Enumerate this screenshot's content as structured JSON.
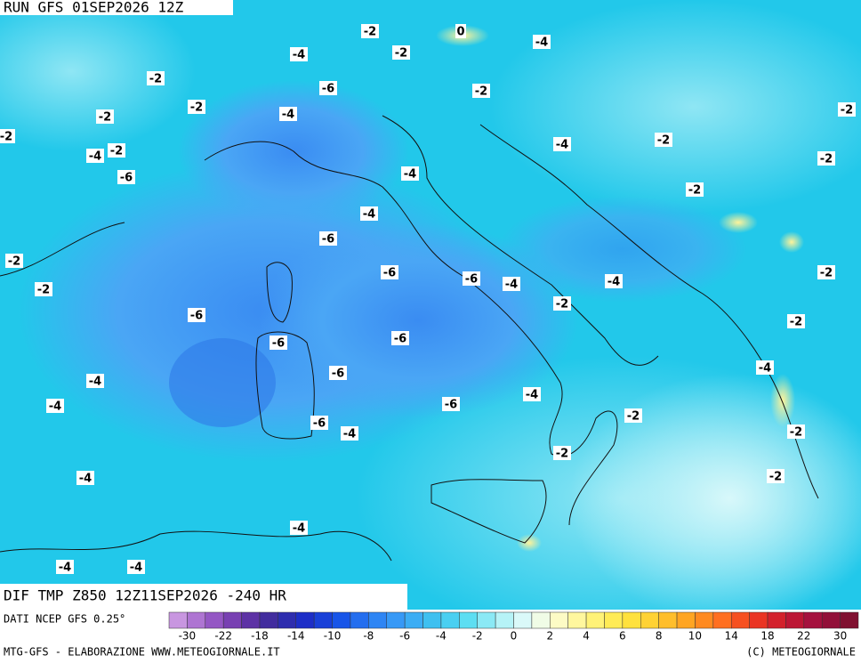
{
  "header": {
    "run": "RUN GFS 01SEP2026 12Z"
  },
  "map": {
    "title": "DIF TMP Z850 12Z11SEP2026 -240 HR",
    "contour_labels": [
      -2,
      0,
      -4,
      -4,
      -2,
      -2,
      -6,
      -2,
      -2,
      -4,
      -2,
      -2,
      -2,
      -2,
      -4,
      -4,
      -2,
      -2,
      -6,
      -4,
      -2,
      -4,
      -6,
      -2,
      -6,
      -6,
      -4,
      -2,
      -4,
      -2,
      -2,
      -6,
      -2,
      -6,
      -6,
      -6,
      -4,
      -4,
      -4,
      -4,
      -6,
      -2,
      -6,
      -4,
      -2,
      -2,
      -2,
      -4,
      -4,
      -4,
      -4
    ]
  },
  "legend": {
    "labels": [
      -30,
      -22,
      -18,
      -14,
      -10,
      -8,
      -6,
      -4,
      -2,
      0,
      2,
      4,
      6,
      8,
      10,
      14,
      18,
      22,
      30
    ]
  },
  "footer": {
    "source": "DATI NCEP GFS 0.25°",
    "credit": "MTG-GFS - ELABORAZIONE WWW.METEOGIORNALE.IT",
    "copyright": "(C) METEOGIORNALE"
  }
}
